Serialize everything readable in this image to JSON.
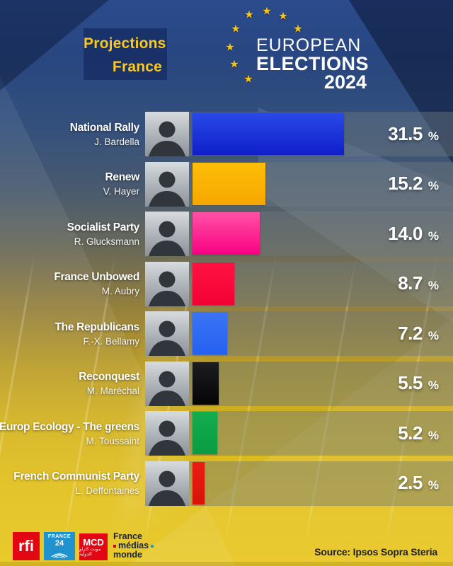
{
  "header": {
    "title_line1": "Projections",
    "title_line2": "France",
    "logo": {
      "line1": "EUROPEAN",
      "line2": "ELECTIONS",
      "line3": "2024",
      "star_color": "#fdc60b"
    }
  },
  "chart_data": {
    "type": "bar",
    "orientation": "horizontal",
    "title": "Projections France",
    "subtitle": "European Elections 2024",
    "unit": "%",
    "xlim": [
      0,
      35
    ],
    "categories": [
      "National Rally",
      "Renew",
      "Socialist Party",
      "France Unbowed",
      "The Republicans",
      "Reconquest",
      "Europ Ecology - The greens",
      "French Communist Party"
    ],
    "values": [
      31.5,
      15.2,
      14.0,
      8.7,
      7.2,
      5.5,
      5.2,
      2.5
    ],
    "rows": [
      {
        "party": "National Rally",
        "candidate": "J. Bardella",
        "value": "31.5",
        "pct": 31.5,
        "color_top": "#2a49e8",
        "color_bottom": "#101fc9"
      },
      {
        "party": "Renew",
        "candidate": "V. Hayer",
        "value": "15.2",
        "pct": 15.2,
        "color_top": "#ffbd08",
        "color_bottom": "#f5a701"
      },
      {
        "party": "Socialist Party",
        "candidate": "R. Glucksmann",
        "value": "14.0",
        "pct": 14.0,
        "color_top": "#ff51a5",
        "color_bottom": "#f90181"
      },
      {
        "party": "France Unbowed",
        "candidate": "M. Aubry",
        "value": "8.7",
        "pct": 8.7,
        "color_top": "#ff1342",
        "color_bottom": "#f30136"
      },
      {
        "party": "The Republicans",
        "candidate": "F.-X. Bellamy",
        "value": "7.2",
        "pct": 7.2,
        "color_top": "#3b74f5",
        "color_bottom": "#2561ef"
      },
      {
        "party": "Reconquest",
        "candidate": "M. Maréchal",
        "value": "5.5",
        "pct": 5.5,
        "color_top": "#1d1d20",
        "color_bottom": "#050506"
      },
      {
        "party": "Europ Ecology - The greens",
        "candidate": "M. Toussaint",
        "value": "5.2",
        "pct": 5.2,
        "color_top": "#12ad4e",
        "color_bottom": "#0a9c43"
      },
      {
        "party": "French Communist Party",
        "candidate": "L. Deffontaines",
        "value": "2.5",
        "pct": 2.5,
        "color_top": "#ea1d12",
        "color_bottom": "#d8130a"
      }
    ]
  },
  "footer": {
    "source": "Source: Ipsos Sopra Steria",
    "logos": {
      "rfi_label": "rfi",
      "france24_line1": "FRANCE",
      "france24_line2": "24",
      "mcd_label": "MCD",
      "mcd_sub": "مونت كارلو الدولية",
      "fmm_line1": "France",
      "fmm_line2": "médias",
      "fmm_line3": "monde"
    }
  }
}
